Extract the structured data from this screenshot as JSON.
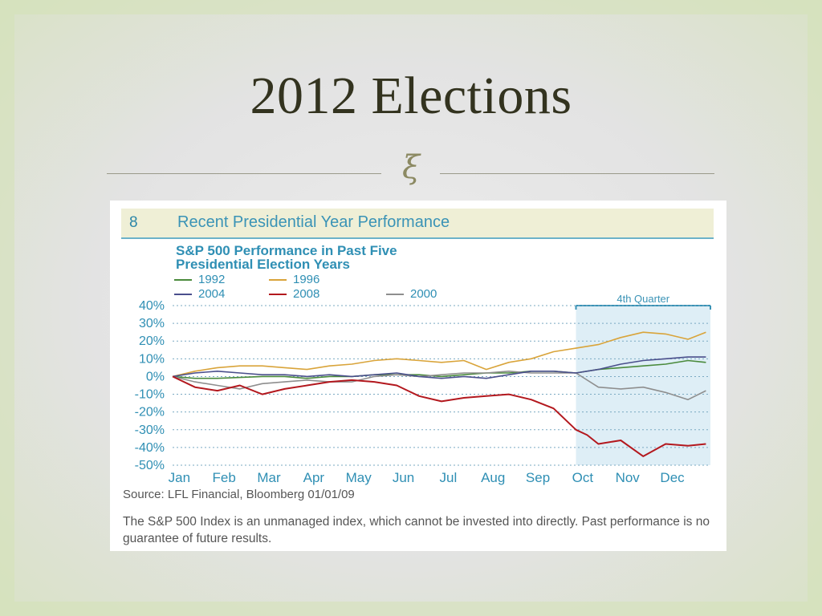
{
  "slide": {
    "title": "2012 Elections",
    "ornament": "ξ"
  },
  "figure": {
    "number": "8",
    "heading": "Recent Presidential Year Performance",
    "source": "Source: LFL Financial, Bloomberg  01/01/09",
    "note": "The S&P 500 Index is an unmanaged index, which cannot be invested into directly. Past performance is no guarantee of future results."
  },
  "chart_data": {
    "type": "line",
    "title": "S&P 500 Performance in Past Five\nPresidential Election Years",
    "xlabel": "",
    "ylabel": "",
    "categories": [
      "Jan",
      "Feb",
      "Mar",
      "Apr",
      "May",
      "Jun",
      "Jul",
      "Aug",
      "Sep",
      "Oct",
      "Nov",
      "Dec"
    ],
    "ytick_labels": [
      "40%",
      "30%",
      "20%",
      "10%",
      "0%",
      "-10%",
      "-20%",
      "-30%",
      "-40%",
      "-50%"
    ],
    "ylim": [
      -50,
      40
    ],
    "grid": true,
    "legend": "top-left",
    "annotation": {
      "label": "4th Quarter",
      "x_from": 9,
      "x_to": 12
    },
    "series": [
      {
        "name": "1992",
        "color": "#4a8a3c",
        "x": [
          0,
          0.5,
          1,
          1.5,
          2,
          2.5,
          3,
          3.5,
          4,
          4.5,
          5,
          5.5,
          6,
          6.5,
          7,
          7.5,
          8,
          8.5,
          9,
          9.5,
          10,
          10.5,
          11,
          11.5,
          11.9
        ],
        "y": [
          0,
          -1,
          -1,
          -0.5,
          0,
          0,
          -1,
          0,
          0,
          1,
          1,
          1,
          0,
          1,
          2,
          2,
          3,
          3,
          2,
          4,
          5,
          6,
          7,
          9,
          8
        ]
      },
      {
        "name": "1996",
        "color": "#d9a43a",
        "x": [
          0,
          0.5,
          1,
          1.5,
          2,
          2.5,
          3,
          3.5,
          4,
          4.5,
          5,
          5.5,
          6,
          6.5,
          7,
          7.5,
          8,
          8.5,
          9,
          9.5,
          10,
          10.5,
          11,
          11.5,
          11.9
        ],
        "y": [
          0,
          3,
          5,
          6,
          6,
          5,
          4,
          6,
          7,
          9,
          10,
          9,
          8,
          9,
          4,
          8,
          10,
          14,
          16,
          18,
          22,
          25,
          24,
          21,
          25
        ]
      },
      {
        "name": "2000",
        "color": "#8e8e8e",
        "x": [
          0,
          0.5,
          1,
          1.5,
          2,
          2.5,
          3,
          3.5,
          4,
          4.5,
          5,
          5.5,
          6,
          6.5,
          7,
          7.5,
          8,
          8.5,
          9,
          9.5,
          10,
          10.5,
          11,
          11.5,
          11.9
        ],
        "y": [
          0,
          -3,
          -5,
          -7,
          -4,
          -3,
          -2,
          -3,
          -3,
          0,
          1,
          0,
          1,
          2,
          2,
          3,
          2,
          2,
          2,
          -6,
          -7,
          -6,
          -9,
          -13,
          -8
        ]
      },
      {
        "name": "2004",
        "color": "#4a4f8c",
        "x": [
          0,
          0.5,
          1,
          1.5,
          2,
          2.5,
          3,
          3.5,
          4,
          4.5,
          5,
          5.5,
          6,
          6.5,
          7,
          7.5,
          8,
          8.5,
          9,
          9.5,
          10,
          10.5,
          11,
          11.5,
          11.9
        ],
        "y": [
          0,
          2,
          3,
          2,
          1,
          1,
          0,
          1,
          0,
          1,
          2,
          0,
          -1,
          0,
          -1,
          1,
          3,
          3,
          2,
          4,
          7,
          9,
          10,
          11,
          11
        ]
      },
      {
        "name": "2008",
        "color": "#b3181e",
        "x": [
          0,
          0.5,
          1,
          1.5,
          2,
          2.5,
          3,
          3.5,
          4,
          4.5,
          5,
          5.5,
          6,
          6.5,
          7,
          7.5,
          8,
          8.5,
          9,
          9.25,
          9.5,
          10,
          10.5,
          11,
          11.5,
          11.9
        ],
        "y": [
          0,
          -6,
          -8,
          -5,
          -10,
          -7,
          -5,
          -3,
          -2,
          -3,
          -5,
          -11,
          -14,
          -12,
          -11,
          -10,
          -13,
          -18,
          -30,
          -33,
          -38,
          -36,
          -45,
          -38,
          -39,
          -38
        ]
      }
    ]
  }
}
